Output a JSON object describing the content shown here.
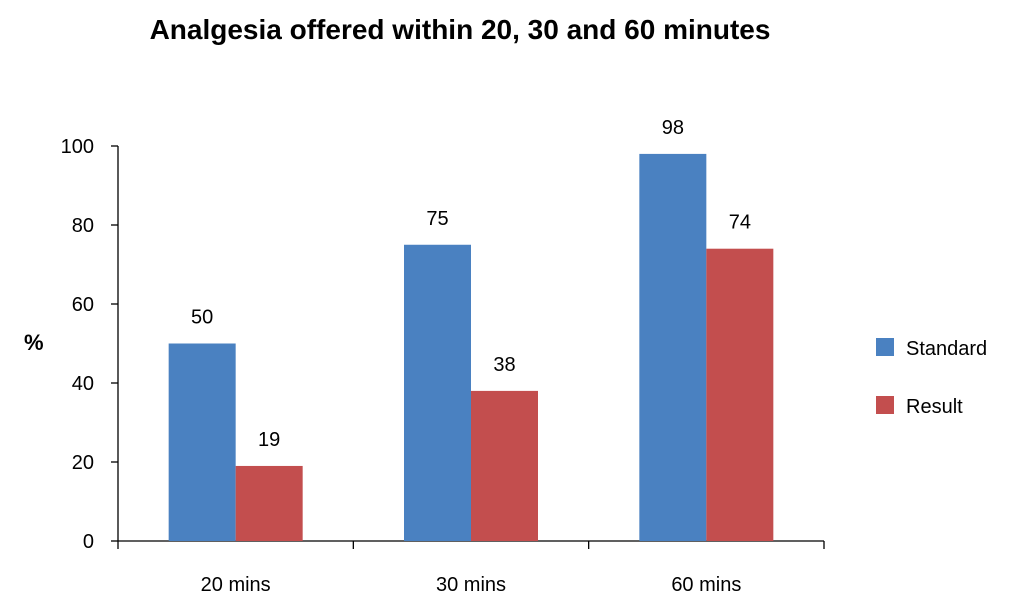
{
  "chart_data": {
    "type": "bar",
    "title": "Analgesia offered within 20, 30 and 60 minutes",
    "xlabel": "",
    "ylabel": "%",
    "ylim": [
      0,
      100
    ],
    "yticks": [
      0,
      20,
      40,
      60,
      80,
      100
    ],
    "categories": [
      "20 mins",
      "30 mins",
      "60 mins"
    ],
    "series": [
      {
        "name": "Standard",
        "values": [
          50,
          75,
          98
        ],
        "color": "#4a81c1"
      },
      {
        "name": "Result",
        "values": [
          19,
          38,
          74
        ],
        "color": "#c34e4e"
      }
    ],
    "data_labels": true,
    "grid": false,
    "legend_position": "right"
  }
}
